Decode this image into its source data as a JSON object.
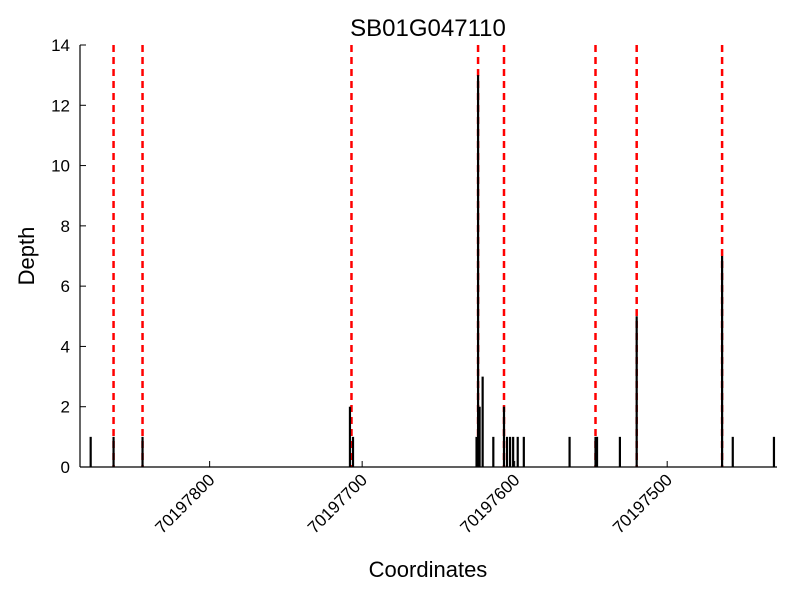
{
  "chart_data": {
    "type": "bar",
    "title": "SB01G047110",
    "xlabel": "Coordinates",
    "ylabel": "Depth",
    "xlim": [
      70197885,
      70197428
    ],
    "ylim": [
      0,
      14
    ],
    "x_reversed": true,
    "yticks": [
      0,
      2,
      4,
      6,
      8,
      10,
      12,
      14
    ],
    "xticks": [
      70197800,
      70197700,
      70197600,
      70197500
    ],
    "grid": false,
    "depth_bars": [
      {
        "x": 70197878,
        "value": 1
      },
      {
        "x": 70197863,
        "value": 1
      },
      {
        "x": 70197844,
        "value": 1
      },
      {
        "x": 70197708,
        "value": 2
      },
      {
        "x": 70197706,
        "value": 1
      },
      {
        "x": 70197625,
        "value": 1
      },
      {
        "x": 70197624,
        "value": 13
      },
      {
        "x": 70197623,
        "value": 2
      },
      {
        "x": 70197621,
        "value": 3
      },
      {
        "x": 70197614,
        "value": 1
      },
      {
        "x": 70197607,
        "value": 2
      },
      {
        "x": 70197605,
        "value": 1
      },
      {
        "x": 70197603,
        "value": 1
      },
      {
        "x": 70197601,
        "value": 1
      },
      {
        "x": 70197598,
        "value": 1
      },
      {
        "x": 70197594,
        "value": 1
      },
      {
        "x": 70197564,
        "value": 1
      },
      {
        "x": 70197547,
        "value": 1
      },
      {
        "x": 70197546,
        "value": 1
      },
      {
        "x": 70197531,
        "value": 1
      },
      {
        "x": 70197520,
        "value": 5
      },
      {
        "x": 70197464,
        "value": 7
      },
      {
        "x": 70197457,
        "value": 1
      },
      {
        "x": 70197430,
        "value": 1
      }
    ],
    "marker_lines": [
      70197863,
      70197844,
      70197707,
      70197624,
      70197607,
      70197547,
      70197520,
      70197464
    ],
    "marker_color": "#ff0000",
    "bar_color": "#000000"
  }
}
